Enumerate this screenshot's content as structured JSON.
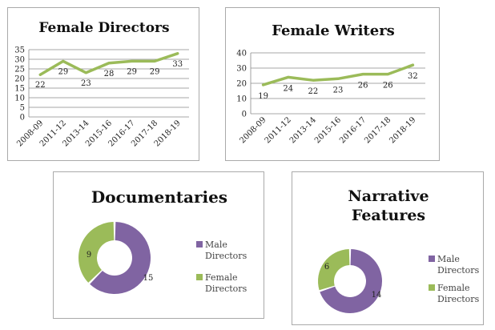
{
  "chart_data": [
    {
      "type": "line",
      "title": "Female Directors",
      "categories": [
        "2008-09",
        "2011-12",
        "2013-14",
        "2015-16",
        "2016-17",
        "2017-18",
        "2018-19"
      ],
      "values": [
        22,
        29,
        23,
        28,
        29,
        29,
        33
      ],
      "yticks": [
        0,
        5,
        10,
        15,
        20,
        25,
        30,
        35
      ],
      "ylim": [
        0,
        35
      ],
      "grid": true,
      "line_color": "#9bbb59"
    },
    {
      "type": "line",
      "title": "Female Writers",
      "categories": [
        "2008-09",
        "2011-12",
        "2013-14",
        "2015-16",
        "2016-17",
        "2017-18",
        "2018-19"
      ],
      "values": [
        19,
        24,
        22,
        23,
        26,
        26,
        32
      ],
      "yticks": [
        0,
        10,
        20,
        30,
        40
      ],
      "ylim": [
        0,
        40
      ],
      "grid": true,
      "line_color": "#9bbb59"
    },
    {
      "type": "pie",
      "subtype": "doughnut",
      "title": "Documentaries",
      "labels": [
        "Male Directors",
        "Female Directors"
      ],
      "values": [
        15,
        9
      ],
      "colors": [
        "#8064a2",
        "#9bbb59"
      ],
      "legend": "right"
    },
    {
      "type": "pie",
      "subtype": "doughnut",
      "title": "Narrative Features",
      "labels": [
        "Male Directors",
        "Female Directors"
      ],
      "values": [
        14,
        6
      ],
      "colors": [
        "#8064a2",
        "#9bbb59"
      ],
      "legend": "right"
    }
  ]
}
